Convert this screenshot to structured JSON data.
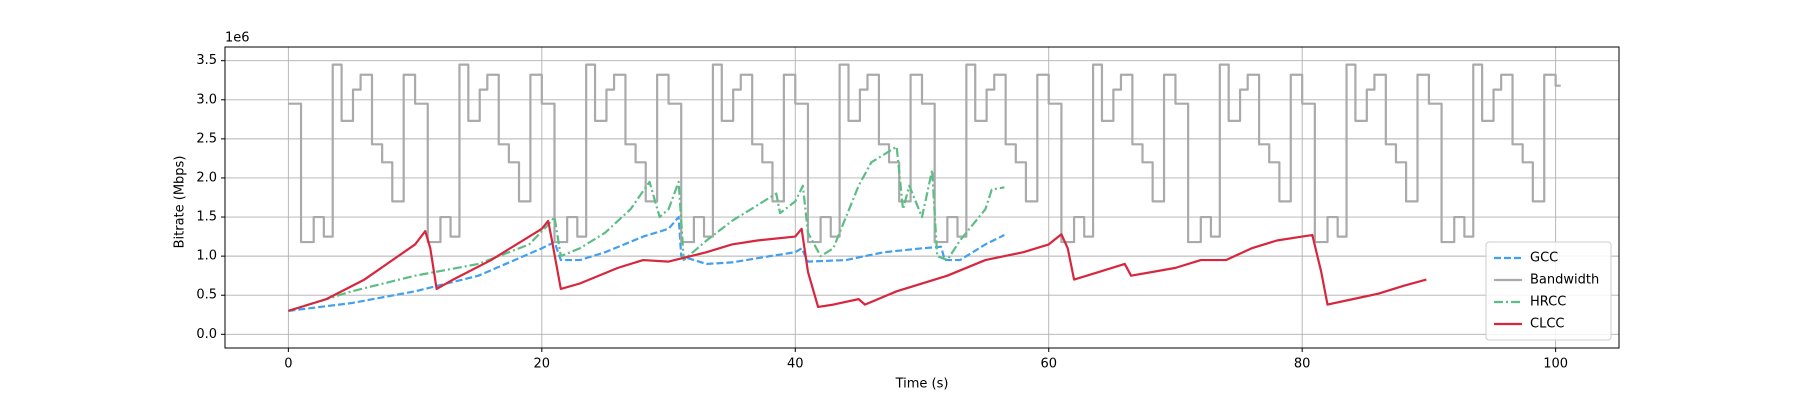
{
  "chart_data": {
    "type": "line",
    "xlabel": "Time (s)",
    "ylabel": "Bitrate (Mbps)",
    "offset_label": "1e6",
    "xlim": [
      -5,
      105
    ],
    "ylim": [
      -0.175,
      3.675
    ],
    "xticks": [
      0,
      20,
      40,
      60,
      80,
      100
    ],
    "yticks": [
      {
        "value": 0,
        "label": "0.0"
      },
      0.5,
      {
        "value": 1,
        "label": "1.0"
      },
      1.5,
      {
        "value": 2,
        "label": "2.0"
      },
      2.5,
      {
        "value": 3,
        "label": "3.0"
      },
      3.5
    ],
    "grid": true,
    "legend": "lower right",
    "series": [
      {
        "name": "GCC",
        "color": "#42a0f0",
        "linestyle": "dashed",
        "x": [
          0,
          5,
          10,
          15,
          20,
          21,
          21.5,
          23,
          25,
          28,
          30,
          30.8,
          31,
          33,
          35,
          38,
          40,
          40.5,
          41,
          44,
          47,
          50,
          51.5,
          51.8,
          53,
          55,
          56.5
        ],
        "values": [
          0.3,
          0.4,
          0.55,
          0.75,
          1.1,
          1.18,
          0.95,
          0.95,
          1.05,
          1.25,
          1.35,
          1.5,
          1.0,
          0.9,
          0.92,
          1.0,
          1.05,
          1.1,
          0.93,
          0.95,
          1.05,
          1.1,
          1.12,
          0.95,
          0.95,
          1.15,
          1.27
        ]
      },
      {
        "name": "Bandwidth",
        "color": "#aaaaaa",
        "linestyle": "solid",
        "drawstyle": "steps-post",
        "x": [
          0,
          1,
          2,
          2.8,
          3.5,
          4.2,
          5.1,
          5.7,
          6.6,
          7.4,
          8.2,
          9.1,
          10,
          11,
          12,
          12.8,
          13.5,
          14.2,
          15.1,
          15.7,
          16.6,
          17.4,
          18.2,
          19.1,
          20,
          21,
          22,
          22.8,
          23.5,
          24.2,
          25.1,
          25.7,
          26.6,
          27.4,
          28.2,
          29.1,
          30,
          31,
          32,
          32.8,
          33.5,
          34.2,
          35.1,
          35.7,
          36.6,
          37.4,
          38.2,
          39.1,
          40,
          41,
          42,
          42.8,
          43.5,
          44.2,
          45.1,
          45.7,
          46.6,
          47.4,
          48.2,
          49.1,
          50,
          51,
          52,
          52.8,
          53.5,
          54.2,
          55.1,
          55.7,
          56.6,
          57.4,
          58.2,
          59.1,
          60,
          61,
          62,
          62.8,
          63.5,
          64.2,
          65.1,
          65.7,
          66.6,
          67.4,
          68.2,
          69.1,
          70,
          71,
          72,
          72.8,
          73.5,
          74.2,
          75.1,
          75.7,
          76.6,
          77.4,
          78.2,
          79.1,
          80,
          81,
          82,
          82.8,
          83.5,
          84.2,
          85.1,
          85.7,
          86.6,
          87.4,
          88.2,
          89.1,
          90,
          91,
          92,
          92.8,
          93.5,
          94.2,
          95.1,
          95.7,
          96.6,
          97.4,
          98.2,
          99.1,
          100,
          100.4
        ],
        "values": [
          2.95,
          1.18,
          1.5,
          1.25,
          3.45,
          2.73,
          3.13,
          3.32,
          2.43,
          2.2,
          1.7,
          3.32,
          2.95,
          1.18,
          1.5,
          1.25,
          3.45,
          2.73,
          3.13,
          3.32,
          2.43,
          2.2,
          1.7,
          3.32,
          2.95,
          1.18,
          1.5,
          1.25,
          3.45,
          2.73,
          3.13,
          3.32,
          2.43,
          2.2,
          1.7,
          3.32,
          2.95,
          1.18,
          1.5,
          1.25,
          3.45,
          2.73,
          3.13,
          3.32,
          2.43,
          2.2,
          1.7,
          3.32,
          2.95,
          1.18,
          1.5,
          1.25,
          3.45,
          2.73,
          3.13,
          3.32,
          2.43,
          2.2,
          1.7,
          3.32,
          2.95,
          1.18,
          1.5,
          1.25,
          3.45,
          2.73,
          3.13,
          3.32,
          2.43,
          2.2,
          1.7,
          3.32,
          2.95,
          1.18,
          1.5,
          1.25,
          3.45,
          2.73,
          3.13,
          3.32,
          2.43,
          2.2,
          1.7,
          3.32,
          2.95,
          1.18,
          1.5,
          1.25,
          3.45,
          2.73,
          3.13,
          3.32,
          2.43,
          2.2,
          1.7,
          3.32,
          2.95,
          1.18,
          1.5,
          1.25,
          3.45,
          2.73,
          3.13,
          3.32,
          2.43,
          2.2,
          1.7,
          3.32,
          2.95,
          1.18,
          1.5,
          1.25,
          3.45,
          2.73,
          3.13,
          3.32,
          2.43,
          2.2,
          1.7,
          3.32,
          3.18,
          3.18
        ]
      },
      {
        "name": "HRCC",
        "color": "#5cbd85",
        "linestyle": "dashdot",
        "x": [
          0,
          5,
          10,
          15,
          19,
          20.5,
          21,
          21.5,
          23,
          25,
          27,
          28.5,
          29.3,
          30,
          30.8,
          31.2,
          33,
          35,
          37,
          38.5,
          38.8,
          40,
          40.6,
          41,
          42,
          43,
          44,
          45,
          46,
          47,
          48,
          48.5,
          49,
          50,
          50.8,
          51.2,
          52,
          53,
          54,
          55,
          55.5,
          56.5
        ],
        "values": [
          0.3,
          0.55,
          0.75,
          0.9,
          1.15,
          1.4,
          1.5,
          1.0,
          1.1,
          1.3,
          1.6,
          1.95,
          1.5,
          1.6,
          1.95,
          0.95,
          1.2,
          1.45,
          1.65,
          1.8,
          1.55,
          1.7,
          1.9,
          1.3,
          1.0,
          1.1,
          1.5,
          1.9,
          2.2,
          2.3,
          2.4,
          1.6,
          1.9,
          1.5,
          2.1,
          1.0,
          0.95,
          1.2,
          1.4,
          1.6,
          1.85,
          1.88
        ]
      },
      {
        "name": "CLCC",
        "color": "#d7263d",
        "linestyle": "solid",
        "x": [
          0,
          3,
          6,
          10,
          10.8,
          11.2,
          11.7,
          13,
          16,
          18,
          20,
          20.5,
          20.8,
          21.5,
          23,
          26,
          28,
          30,
          33,
          35,
          37,
          40,
          40.5,
          41,
          41.8,
          43,
          45,
          45.5,
          48,
          52,
          55,
          58,
          60,
          61,
          61.5,
          62,
          64,
          66,
          66.5,
          70,
          72,
          74,
          76,
          78,
          80,
          80.8,
          81.5,
          82,
          84,
          86,
          88,
          89.8
        ],
        "values": [
          0.3,
          0.45,
          0.7,
          1.15,
          1.32,
          1.1,
          0.58,
          0.7,
          0.95,
          1.15,
          1.35,
          1.45,
          1.2,
          0.58,
          0.65,
          0.85,
          0.95,
          0.93,
          1.05,
          1.15,
          1.2,
          1.25,
          1.35,
          0.8,
          0.35,
          0.38,
          0.45,
          0.38,
          0.55,
          0.75,
          0.95,
          1.05,
          1.15,
          1.28,
          1.1,
          0.7,
          0.8,
          0.9,
          0.75,
          0.85,
          0.95,
          0.95,
          1.1,
          1.2,
          1.25,
          1.27,
          0.8,
          0.38,
          0.45,
          0.52,
          0.62,
          0.7
        ]
      }
    ]
  }
}
